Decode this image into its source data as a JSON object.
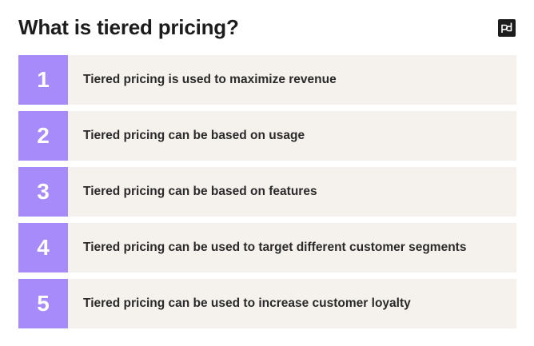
{
  "title": "What is tiered pricing?",
  "logo": {
    "icon": "pd-logo-icon",
    "background": "#1c1c1c"
  },
  "colors": {
    "accent": "#a78bfa",
    "row_background": "#f5f1ed",
    "text": "#2a2a2a"
  },
  "items": [
    {
      "number": "1",
      "text": "Tiered pricing is used to maximize revenue"
    },
    {
      "number": "2",
      "text": "Tiered pricing can be based on usage"
    },
    {
      "number": "3",
      "text": "Tiered pricing can be based on features"
    },
    {
      "number": "4",
      "text": "Tiered pricing can be used to target different customer segments"
    },
    {
      "number": "5",
      "text": "Tiered pricing can be used to increase customer loyalty"
    }
  ]
}
